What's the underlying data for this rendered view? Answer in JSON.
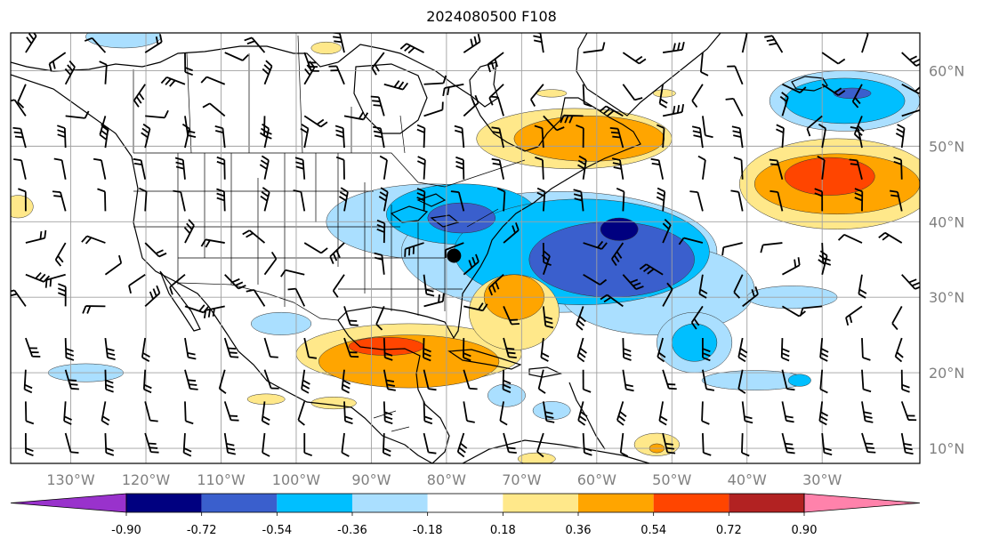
{
  "title": "2024080500 F108",
  "map": {
    "lon_range": [
      -138,
      -17
    ],
    "lat_range": [
      8,
      65
    ],
    "lon_ticks": [
      -130,
      -120,
      -110,
      -100,
      -90,
      -80,
      -70,
      -60,
      -50,
      -40,
      -30
    ],
    "lon_tick_labels": [
      "130°W",
      "120°W",
      "110°W",
      "100°W",
      "90°W",
      "80°W",
      "70°W",
      "60°W",
      "50°W",
      "40°W",
      "30°W"
    ],
    "lat_ticks": [
      10,
      20,
      30,
      40,
      50,
      60
    ],
    "lat_tick_labels": [
      "10°N",
      "20°N",
      "30°N",
      "40°N",
      "50°N",
      "60°N"
    ],
    "grid": true,
    "marker": {
      "label": "station",
      "lon": -79,
      "lat": 35.5
    },
    "colors": {
      "land_lines": "#000000",
      "grid": "#a0a0a0",
      "axis_labels": "#808080"
    }
  },
  "colorbar": {
    "ticks": [
      "-0.90",
      "-0.72",
      "-0.54",
      "-0.36",
      "-0.18",
      "0.18",
      "0.36",
      "0.54",
      "0.72",
      "0.90"
    ],
    "colors": [
      "#9932cc",
      "#000080",
      "#3a5fcd",
      "#00bfff",
      "#aadfff",
      "#ffffff",
      "#ffe88a",
      "#ffa500",
      "#ff4500",
      "#b22222",
      "#ff82ab"
    ],
    "extend": "both"
  },
  "contours": [
    {
      "level": "-0.18",
      "color": "#aadfff",
      "areas": [
        {
          "lon": -82,
          "lat": 40,
          "rlon": 14,
          "rlat": 5
        },
        {
          "lon": -65,
          "lat": 36,
          "rlon": 21,
          "rlat": 8
        },
        {
          "lon": -52,
          "lat": 31,
          "rlon": 13,
          "rlat": 6
        },
        {
          "lon": -47,
          "lat": 24,
          "rlon": 5,
          "rlat": 4
        },
        {
          "lon": -27,
          "lat": 56,
          "rlon": 10,
          "rlat": 4
        },
        {
          "lon": -34,
          "lat": 30,
          "rlon": 6,
          "rlat": 1.5
        },
        {
          "lon": -39,
          "lat": 19,
          "rlon": 7,
          "rlat": 1.3
        },
        {
          "lon": -123,
          "lat": 64.5,
          "rlon": 5,
          "rlat": 1.5
        },
        {
          "lon": -128,
          "lat": 20,
          "rlon": 5,
          "rlat": 1.2
        },
        {
          "lon": -102,
          "lat": 26.5,
          "rlon": 4,
          "rlat": 1.5
        },
        {
          "lon": -72,
          "lat": 17,
          "rlon": 2.5,
          "rlat": 1.5
        },
        {
          "lon": -66,
          "lat": 15,
          "rlon": 2.5,
          "rlat": 1.2
        }
      ]
    },
    {
      "level": "-0.36",
      "color": "#00bfff",
      "areas": [
        {
          "lon": -78,
          "lat": 41,
          "rlon": 10,
          "rlat": 4
        },
        {
          "lon": -62,
          "lat": 36,
          "rlon": 17,
          "rlat": 7
        },
        {
          "lon": -27,
          "lat": 56,
          "rlon": 8,
          "rlat": 3
        },
        {
          "lon": -47,
          "lat": 24,
          "rlon": 3,
          "rlat": 2.5
        },
        {
          "lon": -33,
          "lat": 19,
          "rlon": 1.5,
          "rlat": 0.8
        }
      ]
    },
    {
      "level": "-0.54",
      "color": "#3a5fcd",
      "areas": [
        {
          "lon": -78,
          "lat": 40.5,
          "rlon": 4.5,
          "rlat": 2
        },
        {
          "lon": -58,
          "lat": 35,
          "rlon": 11,
          "rlat": 5
        },
        {
          "lon": -26,
          "lat": 57,
          "rlon": 2.5,
          "rlat": 0.7
        }
      ]
    },
    {
      "level": "-0.72",
      "color": "#000080",
      "areas": [
        {
          "lon": -57,
          "lat": 39,
          "rlon": 2.5,
          "rlat": 1.5
        }
      ]
    },
    {
      "level": "0.18",
      "color": "#ffe88a",
      "areas": [
        {
          "lon": -63,
          "lat": 51,
          "rlon": 13,
          "rlat": 4
        },
        {
          "lon": -28,
          "lat": 45,
          "rlon": 13,
          "rlat": 6
        },
        {
          "lon": -85,
          "lat": 22.5,
          "rlon": 15,
          "rlat": 4
        },
        {
          "lon": -71,
          "lat": 28,
          "rlon": 6,
          "rlat": 5
        },
        {
          "lon": -52,
          "lat": 10.5,
          "rlon": 3,
          "rlat": 1.5
        },
        {
          "lon": -68,
          "lat": 8.6,
          "rlon": 2.5,
          "rlat": 0.8
        },
        {
          "lon": -137,
          "lat": 42,
          "rlon": 2,
          "rlat": 1.5
        },
        {
          "lon": -96,
          "lat": 63,
          "rlon": 2,
          "rlat": 0.8
        },
        {
          "lon": -66,
          "lat": 57,
          "rlon": 2,
          "rlat": 0.5
        },
        {
          "lon": -51,
          "lat": 57,
          "rlon": 1.5,
          "rlat": 0.5
        },
        {
          "lon": -95,
          "lat": 16,
          "rlon": 3,
          "rlat": 0.8
        },
        {
          "lon": -104,
          "lat": 16.5,
          "rlon": 2.5,
          "rlat": 0.7
        }
      ]
    },
    {
      "level": "0.36",
      "color": "#ffa500",
      "areas": [
        {
          "lon": -61,
          "lat": 51,
          "rlon": 10,
          "rlat": 3
        },
        {
          "lon": -28,
          "lat": 45,
          "rlon": 11,
          "rlat": 4
        },
        {
          "lon": -85,
          "lat": 21.5,
          "rlon": 12,
          "rlat": 3.5
        },
        {
          "lon": -71,
          "lat": 30,
          "rlon": 4,
          "rlat": 3
        },
        {
          "lon": -52,
          "lat": 10,
          "rlon": 1,
          "rlat": 0.6
        }
      ]
    },
    {
      "level": "0.54",
      "color": "#ff4500",
      "areas": [
        {
          "lon": -29,
          "lat": 46,
          "rlon": 6,
          "rlat": 2.5
        },
        {
          "lon": -88,
          "lat": 23.5,
          "rlon": 5,
          "rlat": 1.2
        }
      ]
    }
  ]
}
